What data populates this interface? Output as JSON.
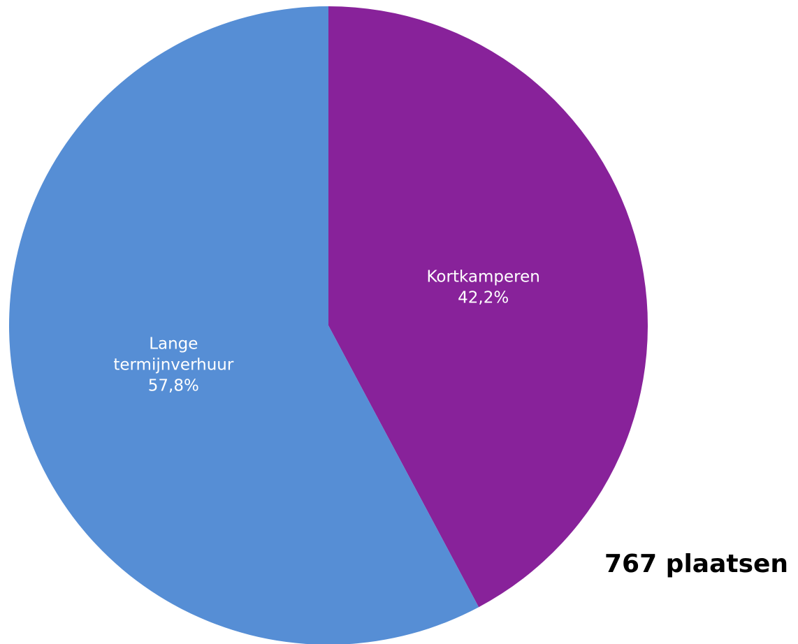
{
  "chart_data": {
    "type": "pie",
    "slices": [
      {
        "name": "Kortkamperen",
        "label_lines": [
          "Kortkamperen"
        ],
        "value": 42.2,
        "display_value": "42,2%",
        "color": "#88229a"
      },
      {
        "name": "Lange termijnverhuur",
        "label_lines": [
          "Lange",
          "termijnverhuur"
        ],
        "value": 57.8,
        "display_value": "57,8%",
        "color": "#568ed5"
      }
    ],
    "start_angle_deg": 0,
    "direction": "clockwise",
    "annotation": "767 plaatsen"
  }
}
